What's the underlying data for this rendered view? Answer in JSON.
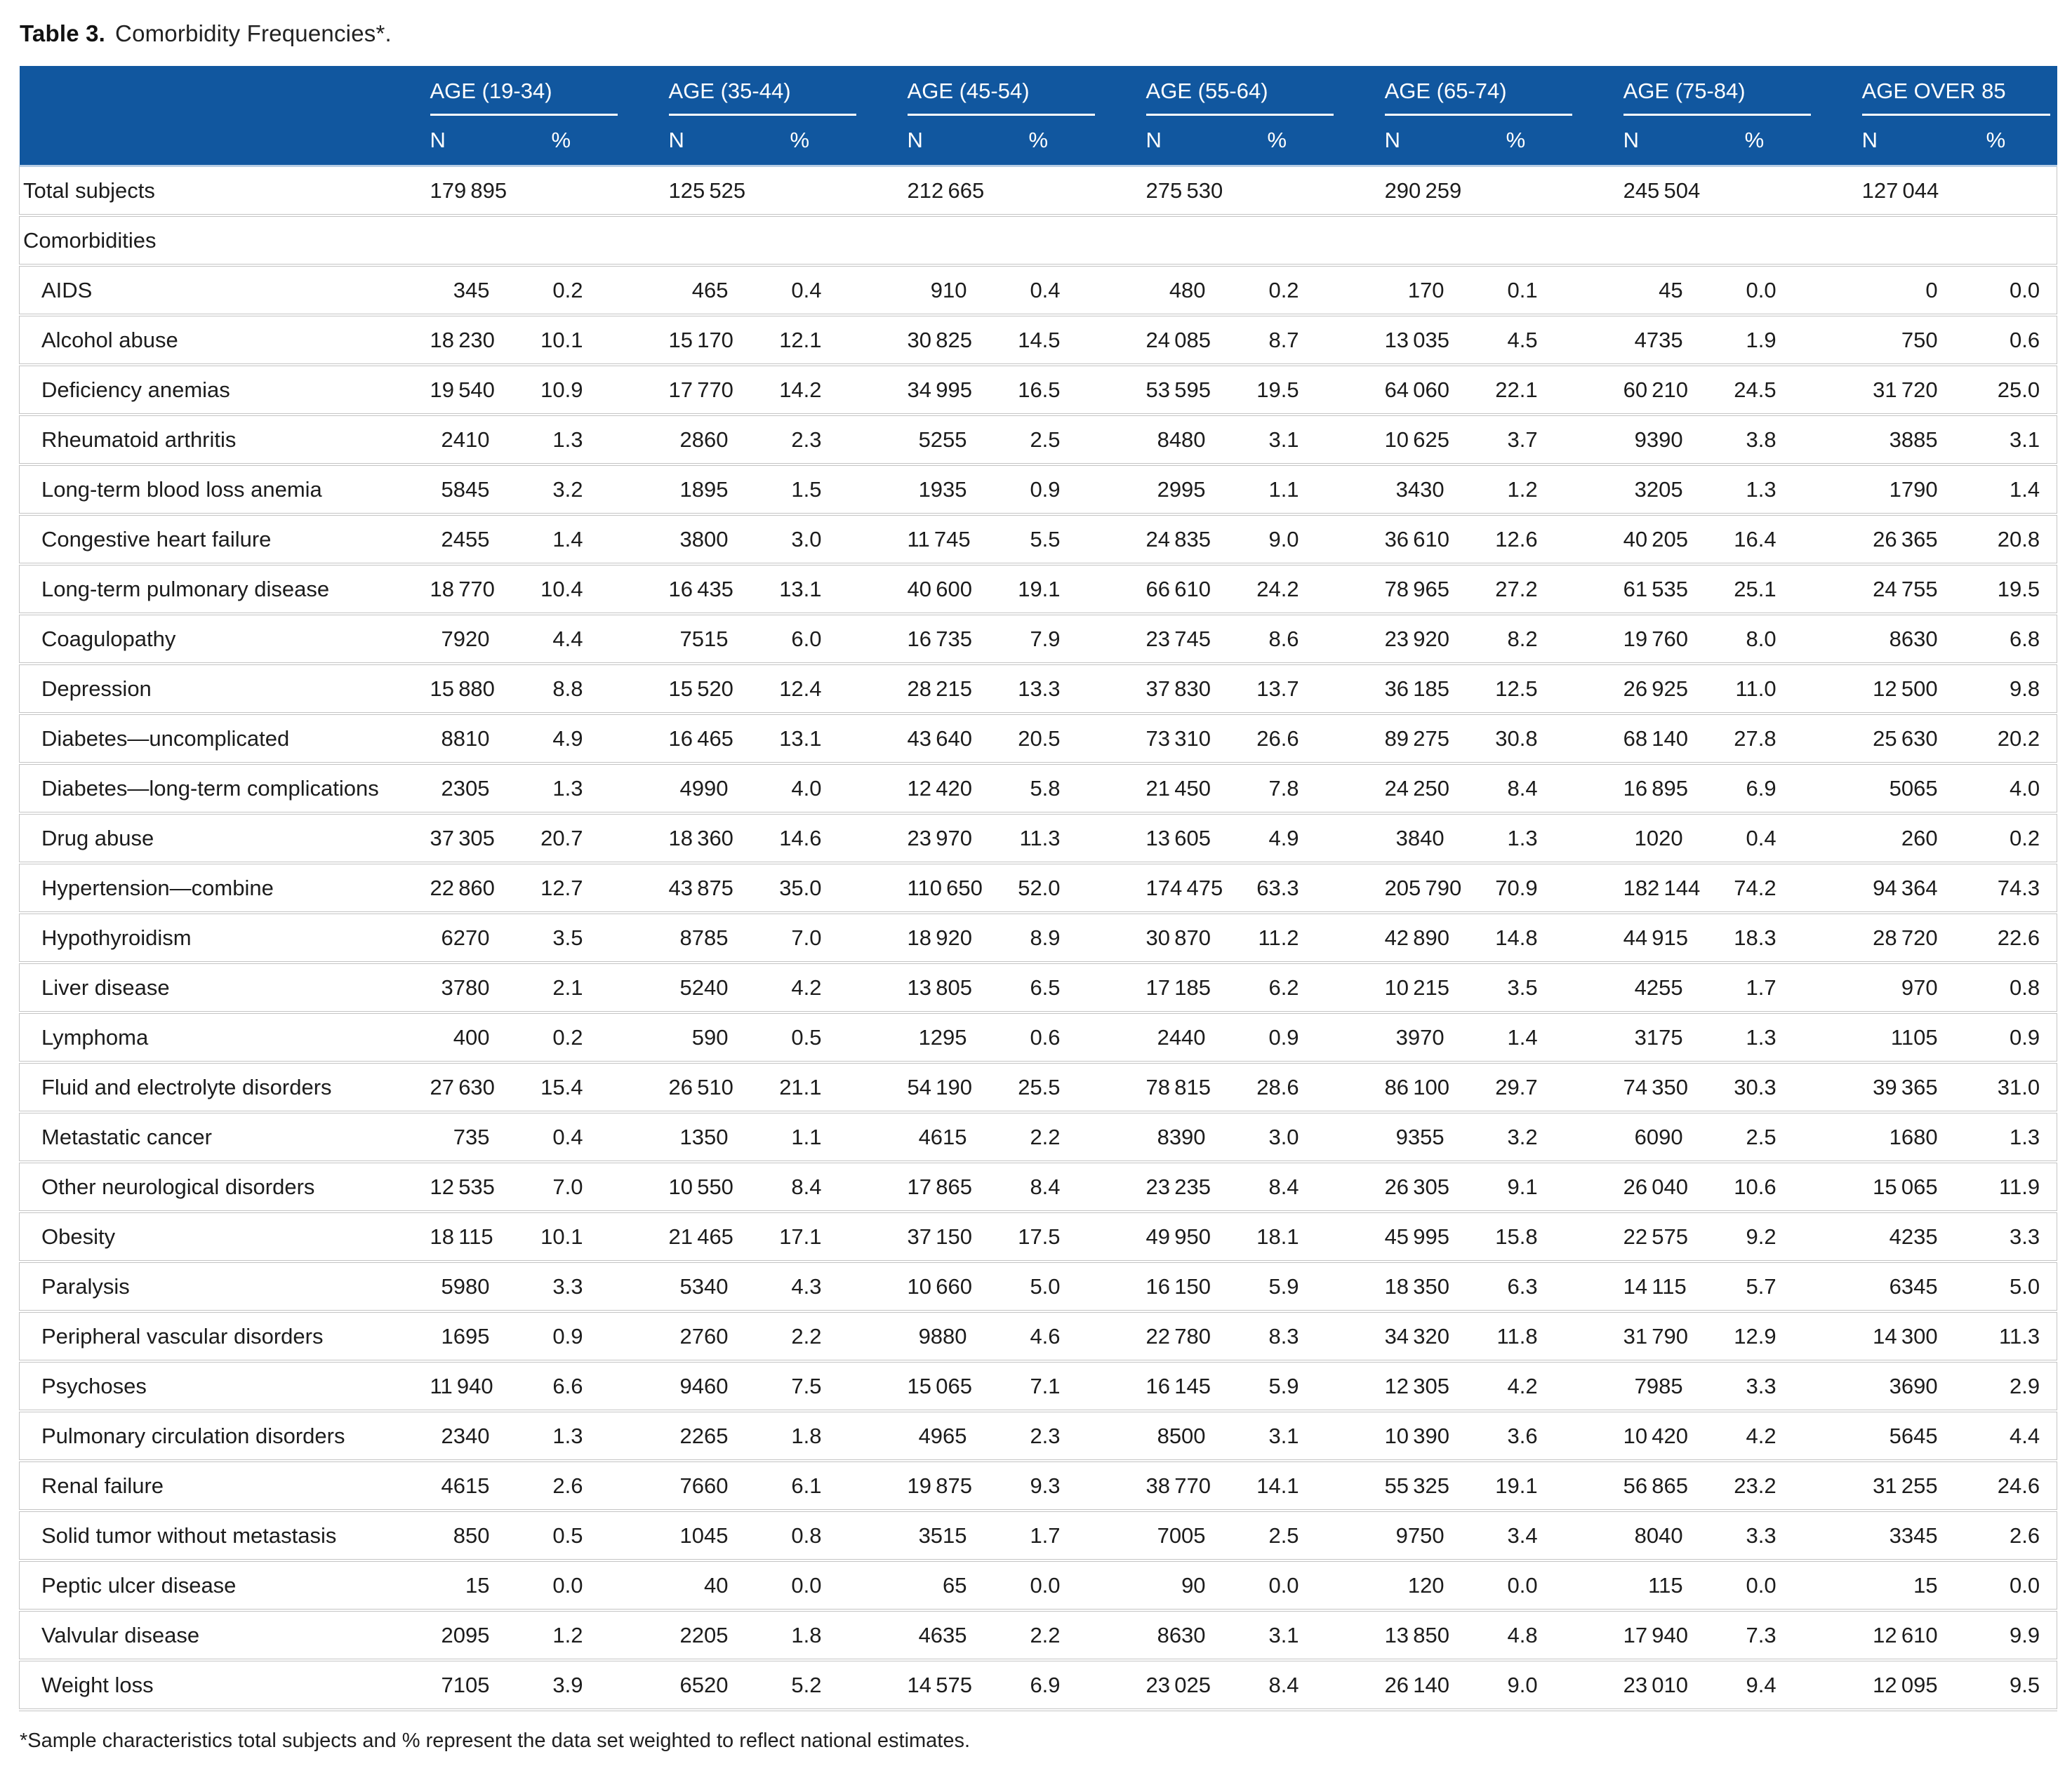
{
  "page": {
    "title_label": "Table 3.",
    "title_text": "Comorbidity Frequencies*.",
    "footnote": "*Sample characteristics total subjects and % represent the data set weighted to reflect national estimates."
  },
  "colors": {
    "header_bg": "#11579F",
    "header_text": "#FFFFFF",
    "row_line": "#C4C4C4",
    "header_bottom_line": "#B7CDE4",
    "body_text": "#1C1C1C"
  },
  "table": {
    "age_groups": [
      "AGE (19-34)",
      "AGE (35-44)",
      "AGE (45-54)",
      "AGE (55-64)",
      "AGE (65-74)",
      "AGE (75-84)",
      "AGE OVER 85"
    ],
    "sub_headers": [
      "N",
      "%"
    ],
    "total_row": {
      "label": "Total subjects",
      "n": [
        179895,
        125525,
        212665,
        275530,
        290259,
        245504,
        127044
      ]
    },
    "section_label": "Comorbidities",
    "rows": [
      {
        "label": "AIDS",
        "n": [
          345,
          465,
          910,
          480,
          170,
          45,
          0
        ],
        "pct": [
          0.2,
          0.4,
          0.4,
          0.2,
          0.1,
          0.0,
          0.0
        ]
      },
      {
        "label": "Alcohol abuse",
        "n": [
          18230,
          15170,
          30825,
          24085,
          13035,
          4735,
          750
        ],
        "pct": [
          10.1,
          12.1,
          14.5,
          8.7,
          4.5,
          1.9,
          0.6
        ]
      },
      {
        "label": "Deficiency anemias",
        "n": [
          19540,
          17770,
          34995,
          53595,
          64060,
          60210,
          31720
        ],
        "pct": [
          10.9,
          14.2,
          16.5,
          19.5,
          22.1,
          24.5,
          25.0
        ]
      },
      {
        "label": "Rheumatoid arthritis",
        "n": [
          2410,
          2860,
          5255,
          8480,
          10625,
          9390,
          3885
        ],
        "pct": [
          1.3,
          2.3,
          2.5,
          3.1,
          3.7,
          3.8,
          3.1
        ]
      },
      {
        "label": "Long-term blood loss anemia",
        "n": [
          5845,
          1895,
          1935,
          2995,
          3430,
          3205,
          1790
        ],
        "pct": [
          3.2,
          1.5,
          0.9,
          1.1,
          1.2,
          1.3,
          1.4
        ]
      },
      {
        "label": "Congestive heart failure",
        "n": [
          2455,
          3800,
          11745,
          24835,
          36610,
          40205,
          26365
        ],
        "pct": [
          1.4,
          3.0,
          5.5,
          9.0,
          12.6,
          16.4,
          20.8
        ]
      },
      {
        "label": "Long-term pulmonary disease",
        "n": [
          18770,
          16435,
          40600,
          66610,
          78965,
          61535,
          24755
        ],
        "pct": [
          10.4,
          13.1,
          19.1,
          24.2,
          27.2,
          25.1,
          19.5
        ]
      },
      {
        "label": "Coagulopathy",
        "n": [
          7920,
          7515,
          16735,
          23745,
          23920,
          19760,
          8630
        ],
        "pct": [
          4.4,
          6.0,
          7.9,
          8.6,
          8.2,
          8.0,
          6.8
        ]
      },
      {
        "label": "Depression",
        "n": [
          15880,
          15520,
          28215,
          37830,
          36185,
          26925,
          12500
        ],
        "pct": [
          8.8,
          12.4,
          13.3,
          13.7,
          12.5,
          11.0,
          9.8
        ]
      },
      {
        "label": "Diabetes—uncomplicated",
        "n": [
          8810,
          16465,
          43640,
          73310,
          89275,
          68140,
          25630
        ],
        "pct": [
          4.9,
          13.1,
          20.5,
          26.6,
          30.8,
          27.8,
          20.2
        ]
      },
      {
        "label": "Diabetes—long-term complications",
        "n": [
          2305,
          4990,
          12420,
          21450,
          24250,
          16895,
          5065
        ],
        "pct": [
          1.3,
          4.0,
          5.8,
          7.8,
          8.4,
          6.9,
          4.0
        ]
      },
      {
        "label": "Drug abuse",
        "n": [
          37305,
          18360,
          23970,
          13605,
          3840,
          1020,
          260
        ],
        "pct": [
          20.7,
          14.6,
          11.3,
          4.9,
          1.3,
          0.4,
          0.2
        ]
      },
      {
        "label": "Hypertension—combine",
        "n": [
          22860,
          43875,
          110650,
          174475,
          205790,
          182144,
          94364
        ],
        "pct": [
          12.7,
          35.0,
          52.0,
          63.3,
          70.9,
          74.2,
          74.3
        ]
      },
      {
        "label": "Hypothyroidism",
        "n": [
          6270,
          8785,
          18920,
          30870,
          42890,
          44915,
          28720
        ],
        "pct": [
          3.5,
          7.0,
          8.9,
          11.2,
          14.8,
          18.3,
          22.6
        ]
      },
      {
        "label": "Liver disease",
        "n": [
          3780,
          5240,
          13805,
          17185,
          10215,
          4255,
          970
        ],
        "pct": [
          2.1,
          4.2,
          6.5,
          6.2,
          3.5,
          1.7,
          0.8
        ]
      },
      {
        "label": "Lymphoma",
        "n": [
          400,
          590,
          1295,
          2440,
          3970,
          3175,
          1105
        ],
        "pct": [
          0.2,
          0.5,
          0.6,
          0.9,
          1.4,
          1.3,
          0.9
        ]
      },
      {
        "label": "Fluid and electrolyte disorders",
        "n": [
          27630,
          26510,
          54190,
          78815,
          86100,
          74350,
          39365
        ],
        "pct": [
          15.4,
          21.1,
          25.5,
          28.6,
          29.7,
          30.3,
          31.0
        ]
      },
      {
        "label": "Metastatic cancer",
        "n": [
          735,
          1350,
          4615,
          8390,
          9355,
          6090,
          1680
        ],
        "pct": [
          0.4,
          1.1,
          2.2,
          3.0,
          3.2,
          2.5,
          1.3
        ]
      },
      {
        "label": "Other neurological disorders",
        "n": [
          12535,
          10550,
          17865,
          23235,
          26305,
          26040,
          15065
        ],
        "pct": [
          7.0,
          8.4,
          8.4,
          8.4,
          9.1,
          10.6,
          11.9
        ]
      },
      {
        "label": "Obesity",
        "n": [
          18115,
          21465,
          37150,
          49950,
          45995,
          22575,
          4235
        ],
        "pct": [
          10.1,
          17.1,
          17.5,
          18.1,
          15.8,
          9.2,
          3.3
        ]
      },
      {
        "label": "Paralysis",
        "n": [
          5980,
          5340,
          10660,
          16150,
          18350,
          14115,
          6345
        ],
        "pct": [
          3.3,
          4.3,
          5.0,
          5.9,
          6.3,
          5.7,
          5.0
        ]
      },
      {
        "label": "Peripheral vascular disorders",
        "n": [
          1695,
          2760,
          9880,
          22780,
          34320,
          31790,
          14300
        ],
        "pct": [
          0.9,
          2.2,
          4.6,
          8.3,
          11.8,
          12.9,
          11.3
        ]
      },
      {
        "label": "Psychoses",
        "n": [
          11940,
          9460,
          15065,
          16145,
          12305,
          7985,
          3690
        ],
        "pct": [
          6.6,
          7.5,
          7.1,
          5.9,
          4.2,
          3.3,
          2.9
        ]
      },
      {
        "label": "Pulmonary circulation disorders",
        "n": [
          2340,
          2265,
          4965,
          8500,
          10390,
          10420,
          5645
        ],
        "pct": [
          1.3,
          1.8,
          2.3,
          3.1,
          3.6,
          4.2,
          4.4
        ]
      },
      {
        "label": "Renal failure",
        "n": [
          4615,
          7660,
          19875,
          38770,
          55325,
          56865,
          31255
        ],
        "pct": [
          2.6,
          6.1,
          9.3,
          14.1,
          19.1,
          23.2,
          24.6
        ]
      },
      {
        "label": "Solid tumor without metastasis",
        "n": [
          850,
          1045,
          3515,
          7005,
          9750,
          8040,
          3345
        ],
        "pct": [
          0.5,
          0.8,
          1.7,
          2.5,
          3.4,
          3.3,
          2.6
        ]
      },
      {
        "label": "Peptic ulcer disease",
        "n": [
          15,
          40,
          65,
          90,
          120,
          115,
          15
        ],
        "pct": [
          0.0,
          0.0,
          0.0,
          0.0,
          0.0,
          0.0,
          0.0
        ]
      },
      {
        "label": "Valvular disease",
        "n": [
          2095,
          2205,
          4635,
          8630,
          13850,
          17940,
          12610
        ],
        "pct": [
          1.2,
          1.8,
          2.2,
          3.1,
          4.8,
          7.3,
          9.9
        ]
      },
      {
        "label": "Weight loss",
        "n": [
          7105,
          6520,
          14575,
          23025,
          26140,
          23010,
          12095
        ],
        "pct": [
          3.9,
          5.2,
          6.9,
          8.4,
          9.0,
          9.4,
          9.5
        ]
      }
    ]
  }
}
